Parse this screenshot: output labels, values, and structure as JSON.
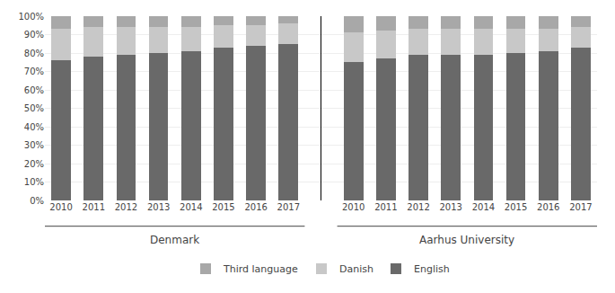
{
  "chart_data": {
    "type": "bar",
    "stacked": true,
    "categories": [
      "2010",
      "2011",
      "2012",
      "2013",
      "2014",
      "2015",
      "2016",
      "2017",
      "2010",
      "2011",
      "2012",
      "2013",
      "2014",
      "2015",
      "2016",
      "2017"
    ],
    "annotations": [
      "Denmark",
      "Aarhus University"
    ],
    "series": [
      {
        "name": "English",
        "color": "#696969",
        "values": [
          76,
          78,
          79,
          80,
          81,
          83,
          84,
          85,
          75,
          77,
          79,
          79,
          79,
          80,
          81,
          83
        ]
      },
      {
        "name": "Danish",
        "color": "#c8c8c8",
        "values": [
          17,
          16,
          15,
          14,
          13,
          12,
          11,
          11,
          16,
          15,
          14,
          14,
          14,
          13,
          12,
          11
        ]
      },
      {
        "name": "Third language",
        "color": "#a8a8a8",
        "values": [
          7,
          6,
          6,
          6,
          6,
          5,
          5,
          4,
          9,
          8,
          7,
          7,
          7,
          7,
          7,
          6
        ]
      }
    ],
    "ylim": [
      0,
      100
    ],
    "yticks": [
      {
        "value": 0,
        "label": "0%"
      },
      {
        "value": 10,
        "label": "10%"
      },
      {
        "value": 20,
        "label": "20%"
      },
      {
        "value": 30,
        "label": "30%"
      },
      {
        "value": 40,
        "label": "40%"
      },
      {
        "value": 50,
        "label": "50%"
      },
      {
        "value": 60,
        "label": "60%"
      },
      {
        "value": 70,
        "label": "70%"
      },
      {
        "value": 80,
        "label": "80%"
      },
      {
        "value": 90,
        "label": "90%"
      },
      {
        "value": 100,
        "label": "100%"
      }
    ],
    "grid": true,
    "legend": "bottom"
  }
}
